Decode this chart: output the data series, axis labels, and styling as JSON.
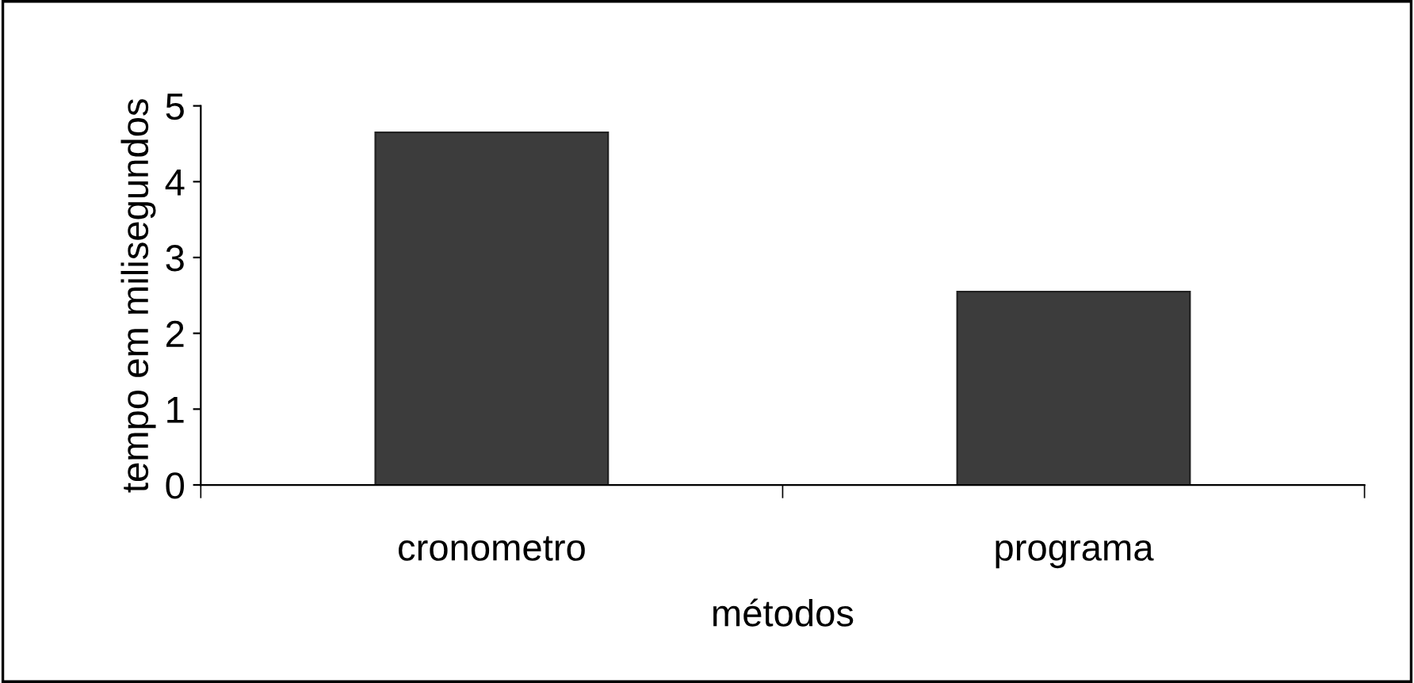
{
  "chart_data": {
    "type": "bar",
    "xlabel": "métodos",
    "ylabel": "tempo em milisegundos",
    "categories": [
      "cronometro",
      "programa"
    ],
    "values": [
      4.65,
      2.55
    ],
    "color": "#3c3c3c",
    "ylim": [
      0,
      5
    ],
    "yticks": [
      0,
      1,
      2,
      3,
      4,
      5
    ],
    "grid": false
  }
}
